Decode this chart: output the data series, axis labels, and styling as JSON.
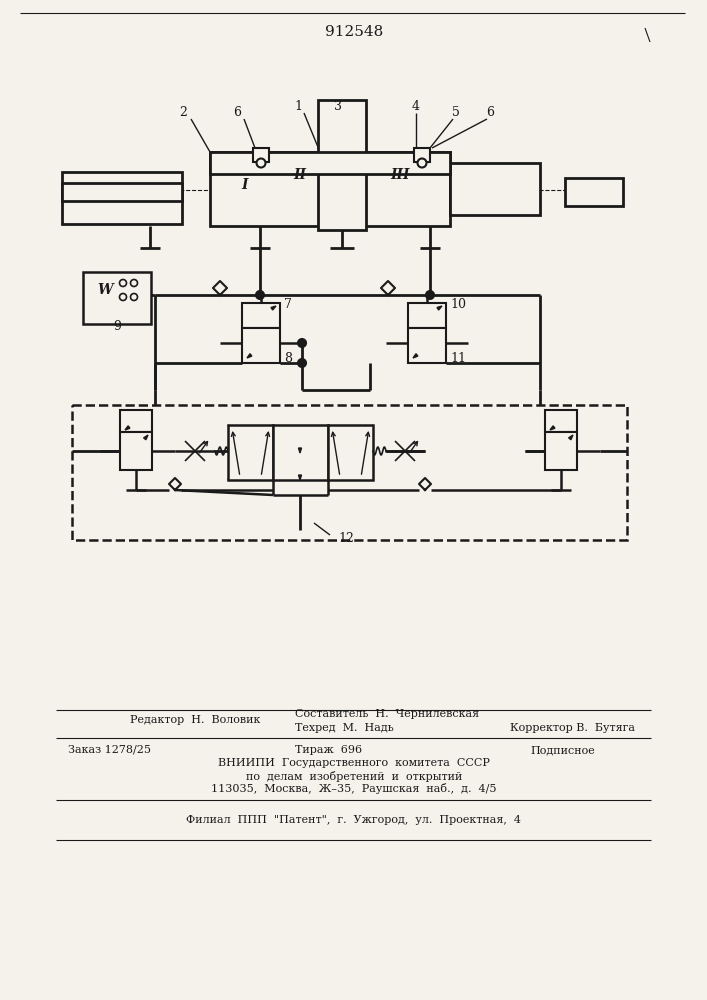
{
  "patent_number": "912548",
  "bg_color": "#f5f2eb",
  "line_color": "#1a1a1a",
  "footer_text_1": "Редактор  Н.  Воловик",
  "footer_text_2": "Составитель  Н.  Чернилевская",
  "footer_text_3": "Техред  М.  Надь",
  "footer_text_4": "Корректор В.  Бутяга",
  "footer_text_5": "Заказ 1278/25",
  "footer_text_6": "Тираж  696",
  "footer_text_7": "Подписное",
  "footer_text_8": "ВНИИПИ  Государственного  комитета  СССР",
  "footer_text_9": "по  делам  изобретений  и  открытий",
  "footer_text_10": "113035,  Москва,  Ж–35,  Раушская  наб.,  д.  4/5",
  "footer_text_11": "Филиал  ППП  \"Патент\",  г.  Ужгород,  ул.  Проектная,  4"
}
